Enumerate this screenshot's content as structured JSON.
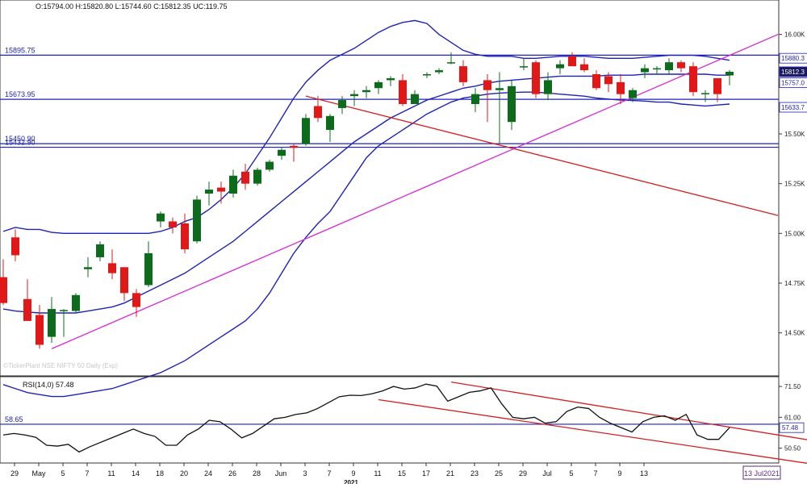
{
  "chart_data": [
    {
      "type": "candlestick",
      "header": {
        "ohlc": "O:15794.00  H:15820.80  L:15744.60  C:15812.35  UC:119.75"
      },
      "watermark": "©TickerPlant NSE NIFTY 50 Daily (Exp)",
      "y_axis": {
        "min": 14300,
        "max": 16100,
        "tick_values": [
          14500,
          14750,
          15000,
          15250,
          15500,
          15750,
          16000
        ],
        "tick_labels": [
          "14.50K",
          "14.75K",
          "15.00K",
          "15.25K",
          "15.50K",
          "15.75K",
          "16.00K"
        ]
      },
      "x_axis": {
        "labels": [
          "29",
          "May",
          "5",
          "7",
          "11",
          "14",
          "18",
          "20",
          "24",
          "26",
          "28",
          "Jun",
          "3",
          "7",
          "9",
          "11",
          "15",
          "17",
          "21",
          "23",
          "25",
          "29",
          "Jul",
          "5",
          "7",
          "9",
          "13"
        ],
        "label_index": [
          0,
          2,
          4,
          6,
          8,
          10,
          12,
          14,
          16,
          18,
          20,
          22,
          24,
          26,
          28,
          30,
          32,
          34,
          36,
          38,
          40,
          42,
          44,
          46,
          48,
          50,
          52
        ],
        "year": "2021",
        "date_badge": "13 Jul2021"
      },
      "candles": [
        [
          14780,
          14870,
          14640,
          14650
        ],
        [
          14980,
          15020,
          14860,
          14890
        ],
        [
          14670,
          14770,
          14560,
          14560
        ],
        [
          14590,
          14640,
          14420,
          14440
        ],
        [
          14480,
          14680,
          14450,
          14620
        ],
        [
          14610,
          14620,
          14480,
          14615
        ],
        [
          14610,
          14700,
          14600,
          14690
        ],
        [
          14820,
          14880,
          14780,
          14830
        ],
        [
          14880,
          14960,
          14860,
          14945
        ],
        [
          14850,
          14920,
          14770,
          14800
        ],
        [
          14830,
          14830,
          14660,
          14700
        ],
        [
          14700,
          14720,
          14580,
          14630
        ],
        [
          14740,
          14960,
          14730,
          14900
        ],
        [
          15060,
          15110,
          15030,
          15100
        ],
        [
          15060,
          15080,
          15000,
          15030
        ],
        [
          15050,
          15100,
          14900,
          14920
        ],
        [
          14960,
          15190,
          14950,
          15170
        ],
        [
          15200,
          15260,
          15140,
          15220
        ],
        [
          15230,
          15260,
          15150,
          15210
        ],
        [
          15200,
          15320,
          15180,
          15290
        ],
        [
          15310,
          15350,
          15220,
          15250
        ],
        [
          15250,
          15330,
          15240,
          15320
        ],
        [
          15320,
          15370,
          15310,
          15360
        ],
        [
          15390,
          15430,
          15370,
          15420
        ],
        [
          15440,
          15450,
          15360,
          15430
        ],
        [
          15450,
          15600,
          15440,
          15580
        ],
        [
          15640,
          15690,
          15560,
          15580
        ],
        [
          15520,
          15600,
          15460,
          15590
        ],
        [
          15630,
          15690,
          15600,
          15670
        ],
        [
          15690,
          15720,
          15640,
          15700
        ],
        [
          15710,
          15740,
          15680,
          15720
        ],
        [
          15730,
          15770,
          15700,
          15760
        ],
        [
          15770,
          15790,
          15740,
          15780
        ],
        [
          15770,
          15800,
          15640,
          15650
        ],
        [
          15650,
          15720,
          15650,
          15700
        ],
        [
          15800,
          15810,
          15780,
          15800
        ],
        [
          15810,
          15830,
          15800,
          15820
        ],
        [
          15860,
          15910,
          15850,
          15860
        ],
        [
          15840,
          15870,
          15740,
          15760
        ],
        [
          15650,
          15730,
          15610,
          15700
        ],
        [
          15770,
          15800,
          15560,
          15720
        ],
        [
          15720,
          15810,
          15450,
          15730
        ],
        [
          15560,
          15770,
          15520,
          15740
        ],
        [
          15840,
          15880,
          15820,
          15840
        ],
        [
          15860,
          15870,
          15680,
          15700
        ],
        [
          15700,
          15810,
          15670,
          15770
        ],
        [
          15830,
          15870,
          15800,
          15850
        ],
        [
          15890,
          15910,
          15840,
          15840
        ],
        [
          15850,
          15880,
          15810,
          15820
        ],
        [
          15800,
          15820,
          15720,
          15730
        ],
        [
          15790,
          15810,
          15710,
          15750
        ],
        [
          15760,
          15800,
          15650,
          15700
        ],
        [
          15680,
          15730,
          15660,
          15720
        ],
        [
          15810,
          15850,
          15780,
          15830
        ],
        [
          15830,
          15840,
          15800,
          15830
        ],
        [
          15820,
          15880,
          15800,
          15860
        ],
        [
          15860,
          15870,
          15810,
          15830
        ],
        [
          15840,
          15860,
          15690,
          15710
        ],
        [
          15700,
          15720,
          15660,
          15705
        ],
        [
          15780,
          15780,
          15660,
          15700
        ],
        [
          15794,
          15820.8,
          15744.6,
          15812.35
        ]
      ],
      "bollinger": {
        "upper": [
          15010,
          15030,
          15020,
          15020,
          15005,
          15000,
          15000,
          15000,
          15000,
          15000,
          15000,
          15000,
          15000,
          15010,
          15030,
          15060,
          15080,
          15120,
          15170,
          15230,
          15300,
          15390,
          15480,
          15580,
          15680,
          15760,
          15820,
          15870,
          15900,
          15930,
          15970,
          16010,
          16040,
          16060,
          16070,
          16055,
          16000,
          15960,
          15920,
          15900,
          15890,
          15890,
          15890,
          15880,
          15880,
          15885,
          15890,
          15890,
          15890,
          15885,
          15880,
          15880,
          15880,
          15885,
          15890,
          15895,
          15895,
          15895,
          15890,
          15880,
          15870
        ],
        "middle": [
          14620,
          14610,
          14605,
          14600,
          14600,
          14600,
          14600,
          14610,
          14620,
          14630,
          14650,
          14680,
          14710,
          14740,
          14770,
          14800,
          14840,
          14880,
          14920,
          14960,
          15010,
          15060,
          15110,
          15160,
          15210,
          15260,
          15310,
          15360,
          15410,
          15460,
          15500,
          15540,
          15580,
          15610,
          15640,
          15670,
          15690,
          15710,
          15730,
          15740,
          15755,
          15765,
          15770,
          15775,
          15780,
          15785,
          15790,
          15790,
          15790,
          15790,
          15795,
          15795,
          15795,
          15800,
          15800,
          15800,
          15800,
          15800,
          15800,
          15795,
          15795
        ],
        "lower": [
          14240,
          14220,
          14200,
          14190,
          14180,
          14180,
          14190,
          14200,
          14210,
          14220,
          14240,
          14260,
          14280,
          14300,
          14330,
          14360,
          14400,
          14440,
          14480,
          14520,
          14560,
          14620,
          14700,
          14800,
          14900,
          14980,
          15050,
          15110,
          15200,
          15290,
          15380,
          15440,
          15480,
          15520,
          15560,
          15600,
          15630,
          15660,
          15680,
          15690,
          15700,
          15705,
          15708,
          15710,
          15710,
          15705,
          15700,
          15695,
          15690,
          15680,
          15675,
          15670,
          15668,
          15665,
          15660,
          15660,
          15650,
          15645,
          15640,
          15645,
          15650
        ]
      },
      "horizontal_lines": [
        {
          "value": 15895.75,
          "label": "15895.75"
        },
        {
          "value": 15673.95,
          "label": "15673.95"
        },
        {
          "value": 15450.9,
          "label": "15450.90"
        },
        {
          "value": 15432.9,
          "label": "15432.90"
        }
      ],
      "trendlines": [
        {
          "name": "support",
          "color": "#d62ad6",
          "from": [
            4,
            14420
          ],
          "to": [
            64,
            16000
          ]
        },
        {
          "name": "resistance",
          "color": "#d42020",
          "from": [
            25,
            15690
          ],
          "to": [
            64,
            15090
          ]
        }
      ],
      "right_labels": [
        {
          "value": 15880.3,
          "label": "15880.3"
        },
        {
          "value": 15812.3,
          "label": "15812.3",
          "badge": "dark"
        },
        {
          "value": 15757,
          "label": "15757.0"
        },
        {
          "value": 15633.7,
          "label": "15633.7"
        }
      ]
    },
    {
      "type": "line",
      "title": "RSI(14,0) 57.48",
      "y_axis": {
        "min": 46,
        "max": 74,
        "tick_values": [
          71.5,
          61,
          50.5
        ],
        "tick_labels": [
          "71.50",
          "61.00",
          "50.50"
        ]
      },
      "level": {
        "value": 58.65,
        "label": "58.65"
      },
      "last_value_label": "57.48",
      "values": [
        55,
        55.5,
        55,
        54.2,
        51.5,
        51.2,
        51.8,
        49.2,
        51,
        52.5,
        54,
        55.5,
        57,
        55.5,
        54.5,
        51.5,
        51.5,
        55,
        57,
        60,
        59.5,
        57,
        54,
        55.5,
        58,
        60.5,
        61,
        62,
        62.5,
        64,
        66,
        68,
        68.5,
        68.4,
        69,
        70,
        71.5,
        70.6,
        71,
        72.3,
        71.6,
        66.5,
        68,
        69.5,
        70,
        71,
        65.5,
        61,
        60.5,
        61,
        59,
        59.5,
        63,
        64.5,
        64,
        61,
        59,
        57.5,
        56,
        59.5,
        61,
        61.5,
        60,
        62,
        55,
        53.5,
        53.5,
        57.48
      ],
      "trendlines": [
        {
          "color": "#d42020",
          "from": [
            37,
            73
          ],
          "to": [
            67,
            53
          ]
        },
        {
          "color": "#d42020",
          "from": [
            31,
            67
          ],
          "to": [
            67,
            45
          ]
        }
      ]
    }
  ]
}
